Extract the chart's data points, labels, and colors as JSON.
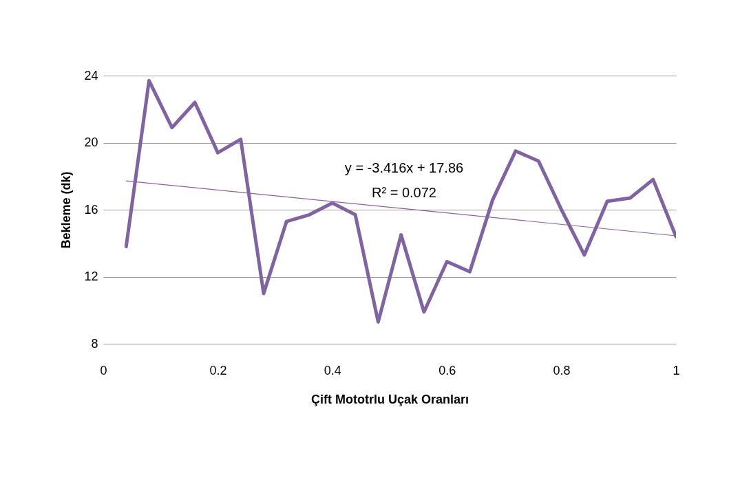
{
  "chart_data": {
    "type": "line",
    "xlabel": "Çift Mototrlu Uçak Oranları",
    "ylabel": "Bekleme (dk)",
    "x": [
      0.04,
      0.08,
      0.12,
      0.16,
      0.2,
      0.24,
      0.28,
      0.32,
      0.36,
      0.4,
      0.44,
      0.48,
      0.52,
      0.56,
      0.6,
      0.64,
      0.68,
      0.72,
      0.76,
      0.8,
      0.84,
      0.88,
      0.92,
      0.96,
      1.0
    ],
    "series": [
      {
        "color": "#8064a2",
        "values": [
          13.8,
          23.7,
          20.9,
          22.4,
          19.4,
          20.2,
          11.0,
          15.3,
          15.7,
          16.4,
          15.7,
          9.3,
          14.5,
          9.9,
          12.9,
          12.3,
          16.6,
          19.5,
          18.9,
          16.0,
          13.3,
          16.5,
          16.7,
          17.8,
          14.4
        ]
      },
      {
        "type": "line",
        "color": "#8e5fa8",
        "x": [
          0.04,
          1.0
        ],
        "values": [
          17.72,
          14.44
        ]
      }
    ],
    "annotations": [
      "y = -3.416x + 17.86",
      "R² = 0.072"
    ],
    "xlim": [
      0,
      1
    ],
    "xticks": [
      0,
      0.2,
      0.4,
      0.6,
      0.8,
      1
    ],
    "ylim": [
      8,
      24
    ],
    "yticks": [
      8,
      12,
      16,
      20,
      24
    ],
    "grid": "y"
  }
}
